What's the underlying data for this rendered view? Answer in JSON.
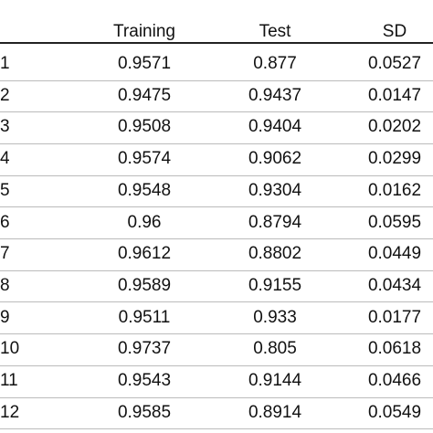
{
  "table": {
    "columns": [
      "Training",
      "Test",
      "SD"
    ],
    "rows": [
      [
        "1",
        "0.9571",
        "0.877",
        "0.0527"
      ],
      [
        "2",
        "0.9475",
        "0.9437",
        "0.0147"
      ],
      [
        "3",
        "0.9508",
        "0.9404",
        "0.0202"
      ],
      [
        "4",
        "0.9574",
        "0.9062",
        "0.0299"
      ],
      [
        "5",
        "0.9548",
        "0.9304",
        "0.0162"
      ],
      [
        "6",
        "0.96",
        "0.8794",
        "0.0595"
      ],
      [
        "7",
        "0.9612",
        "0.8802",
        "0.0449"
      ],
      [
        "8",
        "0.9589",
        "0.9155",
        "0.0434"
      ],
      [
        "9",
        "0.9511",
        "0.933",
        "0.0177"
      ],
      [
        "10",
        "0.9737",
        "0.805",
        "0.0618"
      ],
      [
        "11",
        "0.9543",
        "0.9144",
        "0.0466"
      ],
      [
        "12",
        "0.9585",
        "0.8914",
        "0.0549"
      ]
    ]
  }
}
